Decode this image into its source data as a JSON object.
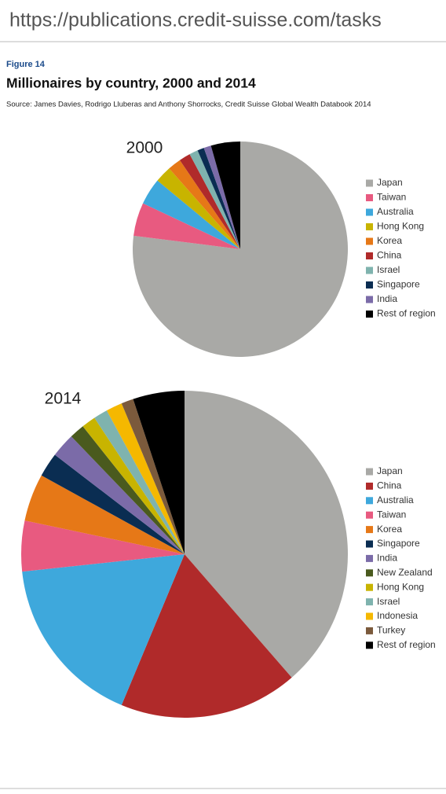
{
  "browser": {
    "url": "https://publications.credit-suisse.com/tasks"
  },
  "header": {
    "figure": "Figure 14",
    "title": "Millionaires by country, 2000 and 2014",
    "source": "Source: James Davies, Rodrigo Lluberas and Anthony Shorrocks, Credit Suisse Global Wealth Databook 2014"
  },
  "chart_data": [
    {
      "type": "pie",
      "title": "2000",
      "categories": [
        "Japan",
        "Taiwan",
        "Australia",
        "Hong Kong",
        "Korea",
        "China",
        "Israel",
        "Singapore",
        "India",
        "Rest of region"
      ],
      "values": [
        77,
        5,
        4,
        2.5,
        2,
        1.7,
        1.3,
        1,
        1.1,
        4.4
      ],
      "colors": [
        "#a9a9a6",
        "#e85a80",
        "#3ea8dc",
        "#c8b400",
        "#e67817",
        "#b02a2a",
        "#7fb3ae",
        "#0a2d52",
        "#7b6ba8",
        "#000000"
      ]
    },
    {
      "type": "pie",
      "title": "2014",
      "categories": [
        "Japan",
        "China",
        "Australia",
        "Taiwan",
        "Korea",
        "Singapore",
        "India",
        "New Zealand",
        "Hong Kong",
        "Israel",
        "Indonesia",
        "Turkey",
        "Rest of region"
      ],
      "values": [
        38.6,
        17.7,
        17,
        5,
        4.7,
        2.4,
        2.4,
        1.5,
        1.4,
        1.4,
        1.6,
        1.2,
        5.1
      ],
      "colors": [
        "#a9a9a6",
        "#b02a2a",
        "#3ea8dc",
        "#e85a80",
        "#e67817",
        "#0a2d52",
        "#7b6ba8",
        "#4a5a1e",
        "#c8b400",
        "#7fb3ae",
        "#f5b800",
        "#7b5a3c",
        "#000000"
      ]
    }
  ]
}
